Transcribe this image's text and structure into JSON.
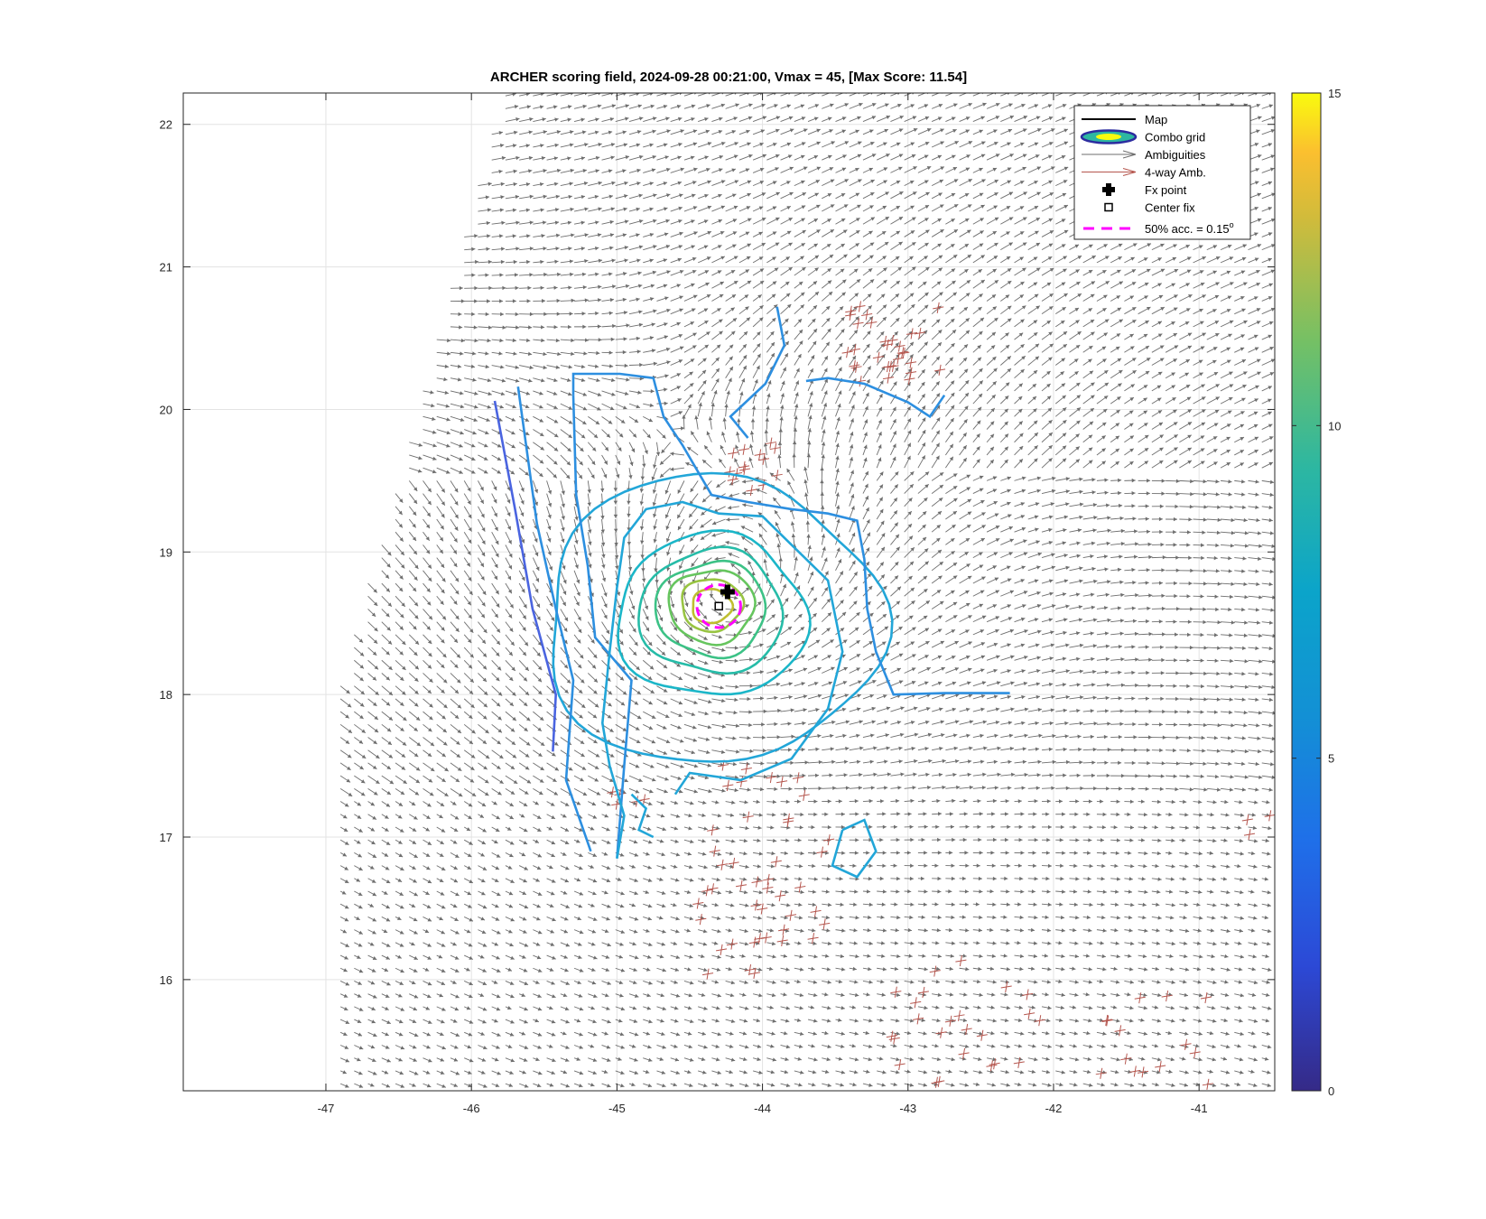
{
  "chart_data": {
    "type": "contour",
    "title": "ARCHER scoring field, 2024-09-28 00:21:00, Vmax = 45, [Max Score: 11.54]",
    "xlabel": "",
    "ylabel": "",
    "xlim": [
      -47.98,
      -40.48
    ],
    "ylim": [
      15.22,
      22.22
    ],
    "xticks": [
      -47,
      -46,
      -45,
      -44,
      -43,
      -42,
      -41
    ],
    "xtick_labels": [
      "-47",
      "-46",
      "-45",
      "-44",
      "-43",
      "-42",
      "-41"
    ],
    "yticks": [
      16,
      17,
      18,
      19,
      20,
      21,
      22
    ],
    "ytick_labels": [
      "16",
      "17",
      "18",
      "19",
      "20",
      "21",
      "22"
    ],
    "grid": true,
    "colorbar": {
      "min": 0,
      "max": 15,
      "ticks": [
        0,
        5,
        10,
        15
      ],
      "tick_labels": [
        "0",
        "5",
        "10",
        "15"
      ],
      "colormap": "parula"
    },
    "legend": {
      "placement": "top-right",
      "entries": [
        "Map",
        "Combo grid",
        "Ambiguities",
        "4-way Amb.",
        "Fx point",
        "Center fix",
        "50% acc. = 0.15"
      ],
      "degree_symbol": "o"
    },
    "center": {
      "lon": -44.3,
      "lat": 18.62
    },
    "fx_point": {
      "lon": -44.24,
      "lat": 18.72
    },
    "accuracy_radius_deg": 0.15,
    "contour_levels": [
      {
        "level": 3.2,
        "color": "#4a64e0"
      },
      {
        "level": 4.6,
        "color": "#2d8fe0"
      },
      {
        "level": 5.6,
        "color": "#22a6d8"
      },
      {
        "level": 6.6,
        "color": "#1bb6c8"
      },
      {
        "level": 7.6,
        "color": "#26bca8"
      },
      {
        "level": 8.6,
        "color": "#3cc286"
      },
      {
        "level": 9.6,
        "color": "#66c55e"
      },
      {
        "level": 10.6,
        "color": "#98c442"
      },
      {
        "level": 11.3,
        "color": "#bfbf30"
      }
    ],
    "colors": {
      "ambiguity": "#6e6e6e",
      "four_way": "#b5564e",
      "accuracy": "#ff00ff",
      "grid": "#e3e3e3"
    }
  }
}
